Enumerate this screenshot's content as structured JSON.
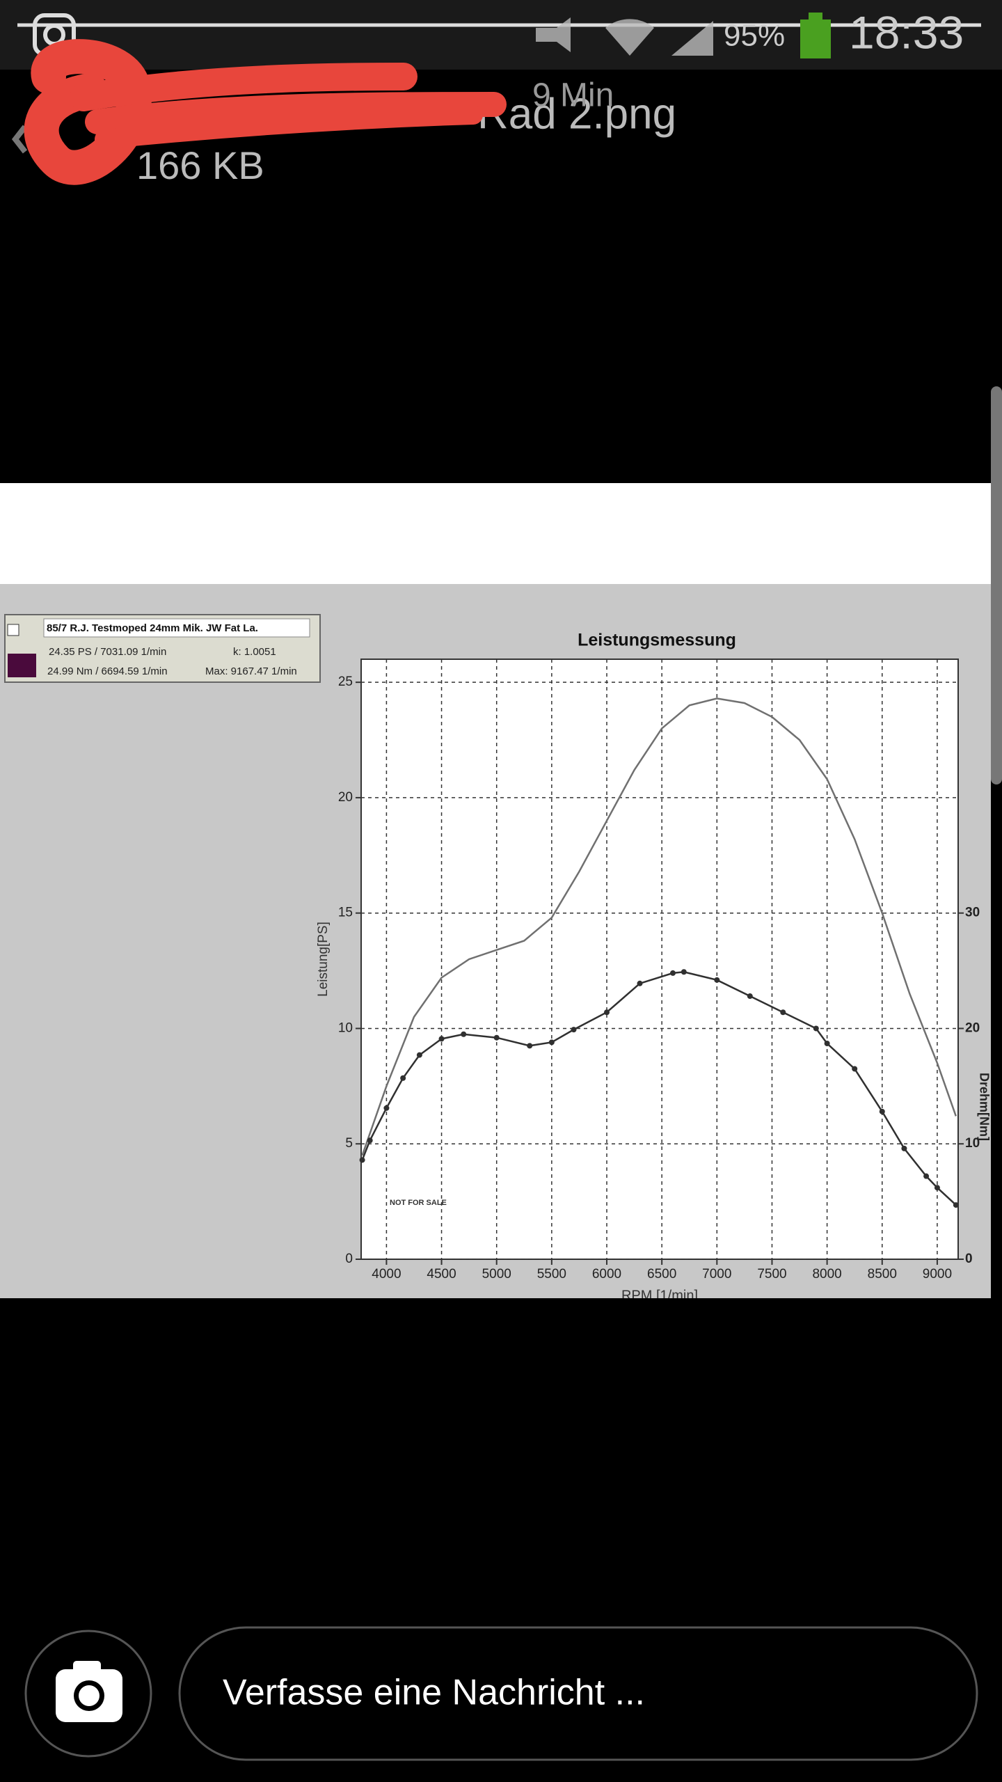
{
  "status_bar": {
    "battery": "95%",
    "time": "18:33"
  },
  "header": {
    "sender_time": "9 Min",
    "file_name": "Rad 2.png",
    "file_size": "166 KB"
  },
  "chart_data": {
    "type": "line",
    "title": "Leistungsmessung",
    "y_label": "Leistung[PS]",
    "y2_label": "Drehm[Nm]",
    "x_label": "RPM [1/min]",
    "annotation": "NOT FOR SALE",
    "info_box": {
      "header": "85/7 R.J. Testmoped 24mm Mik. JW Fat La.",
      "power": "24.35 PS / 7031.09 1/min",
      "k": "k: 1.0051",
      "torque": "24.99 Nm / 6694.59 1/min",
      "max": "Max: 9167.47 1/min",
      "swatch_color": "#4a0a3c"
    },
    "xlim": [
      3770,
      9190
    ],
    "xticks": [
      4000,
      4500,
      5000,
      5500,
      6000,
      6500,
      7000,
      7500,
      8000,
      8500,
      9000
    ],
    "ylim": [
      0,
      26
    ],
    "yticks": [
      0,
      5,
      10,
      15,
      20,
      25
    ],
    "y2lim": [
      0,
      52
    ],
    "y2ticks": [
      0,
      10,
      20,
      30
    ],
    "grid": true,
    "series": [
      {
        "color": "#707070",
        "markers": false,
        "x": [
          3780,
          4000,
          4250,
          4500,
          4750,
          5000,
          5250,
          5500,
          5750,
          6000,
          6250,
          6500,
          6750,
          7000,
          7250,
          7500,
          7750,
          8000,
          8250,
          8500,
          8750,
          9000,
          9170
        ],
        "values": [
          4.5,
          7.5,
          10.5,
          12.2,
          13.0,
          13.4,
          13.8,
          14.8,
          16.8,
          19.0,
          21.2,
          23.0,
          24.0,
          24.3,
          24.1,
          23.5,
          22.5,
          20.8,
          18.2,
          15.0,
          11.5,
          8.5,
          6.2
        ]
      },
      {
        "color": "#303030",
        "markers": true,
        "axis": "y2",
        "x": [
          3780,
          3850,
          4000,
          4150,
          4300,
          4500,
          4700,
          5000,
          5300,
          5500,
          5700,
          6000,
          6300,
          6600,
          6700,
          7000,
          7300,
          7600,
          7900,
          8000,
          8250,
          8500,
          8700,
          8900,
          9000,
          9170
        ],
        "values": [
          8.6,
          10.3,
          13.1,
          15.7,
          17.7,
          19.1,
          19.5,
          19.2,
          18.5,
          18.8,
          19.9,
          21.4,
          23.9,
          24.8,
          24.9,
          24.2,
          22.8,
          21.4,
          20.0,
          18.7,
          16.5,
          12.8,
          9.6,
          7.2,
          6.2,
          4.7
        ]
      }
    ]
  },
  "composer": {
    "placeholder": "Verfasse eine Nachricht ..."
  }
}
